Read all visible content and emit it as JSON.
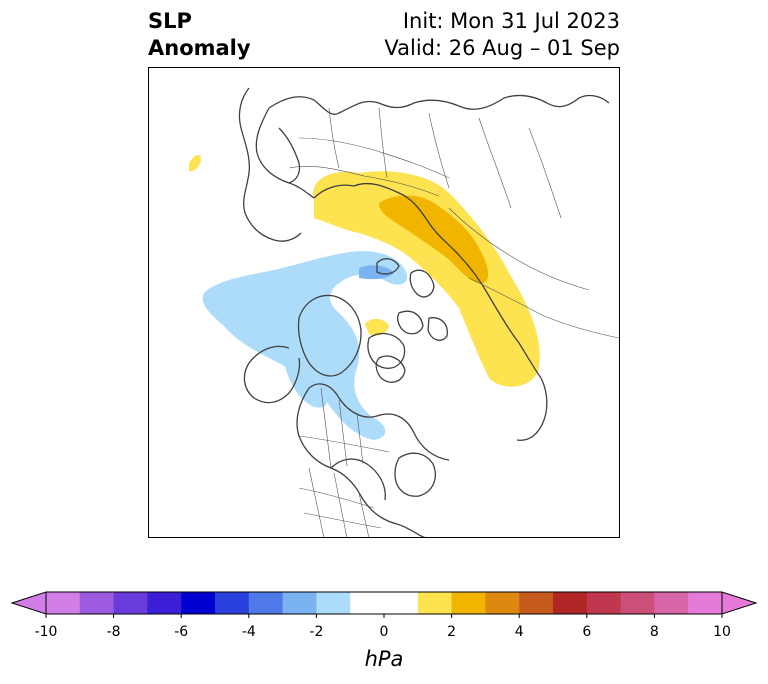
{
  "title": {
    "left_line1": "SLP",
    "left_line2": "Anomaly",
    "right_line1": "Init: Mon 31 Jul 2023",
    "right_line2": "Valid: 26 Aug – 01 Sep"
  },
  "colorbar": {
    "label": "hPa",
    "ticks": [
      "-10",
      "-8",
      "-6",
      "-4",
      "-2",
      "0",
      "2",
      "4",
      "6",
      "8",
      "10"
    ],
    "bins": [
      {
        "from": -10,
        "to": -9,
        "color": "#d37ee6"
      },
      {
        "from": -9,
        "to": -8,
        "color": "#9b5ae0"
      },
      {
        "from": -8,
        "to": -7,
        "color": "#6a3bdb"
      },
      {
        "from": -7,
        "to": -6,
        "color": "#3a1fd6"
      },
      {
        "from": -6,
        "to": -5,
        "color": "#0000d0"
      },
      {
        "from": -5,
        "to": -4,
        "color": "#2a40dc"
      },
      {
        "from": -4,
        "to": -3,
        "color": "#4f78e8"
      },
      {
        "from": -3,
        "to": -2,
        "color": "#7ab2f2"
      },
      {
        "from": -2,
        "to": -1,
        "color": "#addcfa"
      },
      {
        "from": -1,
        "to": 1,
        "color": "#ffffff"
      },
      {
        "from": 1,
        "to": 2,
        "color": "#fde350"
      },
      {
        "from": 2,
        "to": 3,
        "color": "#f1b500"
      },
      {
        "from": 3,
        "to": 4,
        "color": "#dd8910"
      },
      {
        "from": 4,
        "to": 5,
        "color": "#c65a1c"
      },
      {
        "from": 5,
        "to": 6,
        "color": "#b02626"
      },
      {
        "from": 6,
        "to": 7,
        "color": "#c0374f"
      },
      {
        "from": 7,
        "to": 8,
        "color": "#cc4f7a"
      },
      {
        "from": 8,
        "to": 9,
        "color": "#d766a8"
      },
      {
        "from": 9,
        "to": 10,
        "color": "#e67ad8"
      }
    ],
    "under_color": "#d37ee6",
    "over_color": "#e67ad8",
    "extend": "both"
  },
  "map": {
    "projection": "north polar stereographic",
    "coastline_color": "#404040",
    "anomaly_regions": [
      {
        "name": "eurasia-positive",
        "level": "+1 to +2",
        "color": "#fde350"
      },
      {
        "name": "siberia-positive-core",
        "level": "+2 to +3",
        "color": "#f1b500"
      },
      {
        "name": "arctic-negative",
        "level": "-1 to -2",
        "color": "#addcfa"
      },
      {
        "name": "arctic-negative-core",
        "level": "-2 to -3",
        "color": "#7ab2f2"
      },
      {
        "name": "pole-positive",
        "level": "+1 to +2",
        "color": "#fde350"
      }
    ]
  }
}
